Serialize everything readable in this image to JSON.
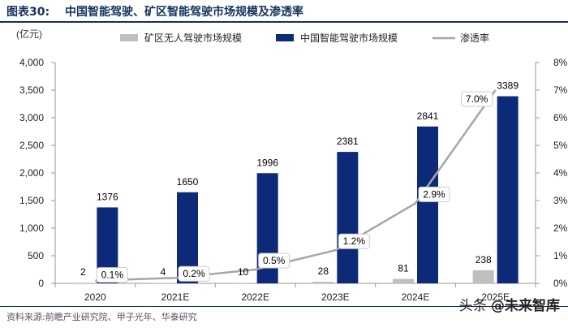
{
  "header": {
    "figure_label": "图表30:",
    "title": "中国智能驾驶、矿区智能驾驶市场规模及渗透率"
  },
  "footer": {
    "source": "资料来源:前瞻产业研究院、甲子光年、华泰研究",
    "watermark_prefix": "头条",
    "watermark_handle": "@未来智库"
  },
  "colors": {
    "navy": "#0d2a78",
    "gray_bar": "#bfbfbf",
    "line": "#a6a6a6",
    "title": "#14315d"
  },
  "chart_data": {
    "type": "bar",
    "unit_label": "(亿元)",
    "categories": [
      "2020",
      "2021E",
      "2022E",
      "2023E",
      "2024E",
      "2025E"
    ],
    "series": [
      {
        "name": "矿区无人驾驶市场规模",
        "type": "bar",
        "axis": "left",
        "values": [
          2,
          4,
          10,
          28,
          81,
          238
        ],
        "labels": [
          "2",
          "4",
          "10",
          "28",
          "81",
          "238"
        ]
      },
      {
        "name": "中国智能驾驶市场规模",
        "type": "bar",
        "axis": "left",
        "values": [
          1376,
          1650,
          1996,
          2381,
          2841,
          3389
        ],
        "labels": [
          "1376",
          "1650",
          "1996",
          "2381",
          "2841",
          "3389"
        ]
      },
      {
        "name": "渗透率",
        "type": "line",
        "axis": "right",
        "values": [
          0.1,
          0.2,
          0.5,
          1.2,
          2.9,
          7.0
        ],
        "labels": [
          "0.1%",
          "0.2%",
          "0.5%",
          "1.2%",
          "2.9%",
          "7.0%"
        ]
      }
    ],
    "left_axis": {
      "min": 0,
      "max": 4000,
      "ticks": [
        0,
        500,
        1000,
        1500,
        2000,
        2500,
        3000,
        3500,
        4000
      ],
      "tick_labels": [
        "0",
        "500",
        "1,000",
        "1,500",
        "2,000",
        "2,500",
        "3,000",
        "3,500",
        "4,000"
      ]
    },
    "right_axis": {
      "min": 0,
      "max": 8,
      "ticks": [
        0,
        1,
        2,
        3,
        4,
        5,
        6,
        7,
        8
      ],
      "tick_labels": [
        "0%",
        "1%",
        "2%",
        "3%",
        "4%",
        "5%",
        "6%",
        "7%",
        "8%"
      ]
    },
    "legend_position": "top"
  }
}
